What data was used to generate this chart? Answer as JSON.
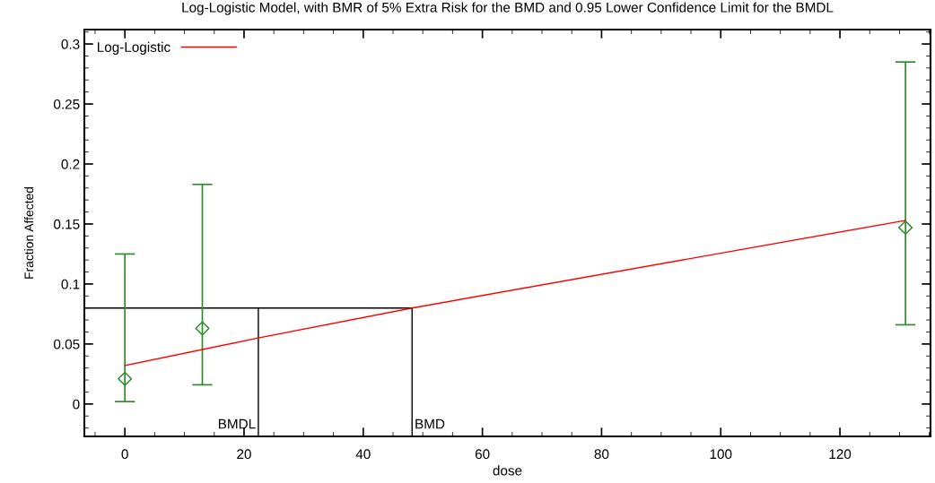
{
  "chart_data": {
    "type": "scatter",
    "title": "Log-Logistic Model, with BMR of 5% Extra Risk for the BMD and 0.95 Lower Confidence Limit for the BMDL",
    "xlabel": "dose",
    "ylabel": "Fraction Affected",
    "series": [
      {
        "color": "#2e8b2e",
        "marker": "diamond",
        "x": [
          0,
          13,
          131
        ],
        "values": [
          0.021,
          0.063,
          0.147
        ],
        "errors": [
          [
            0.002,
            0.125
          ],
          [
            0.016,
            0.183
          ],
          [
            0.066,
            0.285
          ]
        ]
      },
      {
        "type": "line",
        "name": "Log-Logistic",
        "color": "#ff0000",
        "marker": "none",
        "x": [
          0,
          22.4,
          48.2,
          131
        ],
        "values": [
          0.032,
          0.055,
          0.08,
          0.153
        ]
      }
    ],
    "ref_lines": [
      {
        "axis": "y",
        "value": 0.08,
        "color": "#000000"
      },
      {
        "axis": "x",
        "value": 22.4,
        "label": "BMDL",
        "color": "#000000"
      },
      {
        "axis": "x",
        "value": 48.2,
        "label": "BMD",
        "color": "#000000"
      }
    ],
    "xlim": [
      -6.8,
      135.2
    ],
    "ylim": [
      -0.027,
      0.312
    ],
    "xticks": [
      0,
      20,
      40,
      60,
      80,
      100,
      120
    ],
    "yticks": [
      0,
      0.05,
      0.1,
      0.15,
      0.2,
      0.25,
      0.3
    ],
    "grid": false,
    "legend": "top left"
  }
}
